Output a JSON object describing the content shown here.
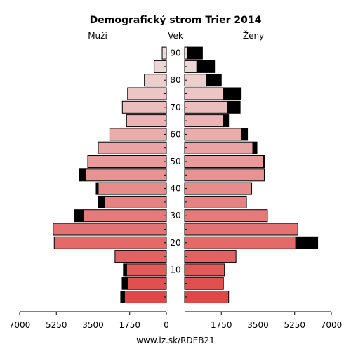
{
  "chart_data": {
    "type": "bar",
    "title": "Demografický strom Trier 2014",
    "left_label": "Muži",
    "center_label": "Vek",
    "right_label": "Ženy",
    "footer": "www.iz.sk/RDEB21",
    "xlim": [
      0,
      7000
    ],
    "x_ticks": [
      "7000",
      "5250",
      "3500",
      "1750",
      "0",
      "1750",
      "3500",
      "5250",
      "7000"
    ],
    "age_tick_labels": [
      "10",
      "20",
      "30",
      "40",
      "50",
      "60",
      "70",
      "80",
      "90"
    ],
    "age_groups": [
      "0-4",
      "5-9",
      "10-14",
      "15-19",
      "20-24",
      "25-29",
      "30-34",
      "35-39",
      "40-44",
      "45-49",
      "50-54",
      "55-59",
      "60-64",
      "65-69",
      "70-74",
      "75-79",
      "80-84",
      "85-89",
      "90+"
    ],
    "series": [
      {
        "name": "Muži",
        "values": [
          2000,
          1850,
          1900,
          2450,
          5350,
          5400,
          3950,
          2950,
          3250,
          3850,
          3750,
          3250,
          2700,
          1900,
          2100,
          1850,
          1050,
          580,
          200
        ],
        "excess": [
          180,
          260,
          150,
          0,
          0,
          0,
          450,
          300,
          100,
          300,
          0,
          0,
          0,
          0,
          0,
          0,
          0,
          0,
          0
        ]
      },
      {
        "name": "Ženy",
        "values": [
          2100,
          1850,
          1900,
          2450,
          5300,
          5400,
          3950,
          2950,
          3200,
          3800,
          3750,
          3250,
          2700,
          1850,
          2050,
          1850,
          1050,
          580,
          150
        ],
        "excess": [
          0,
          0,
          0,
          0,
          1050,
          0,
          0,
          0,
          0,
          0,
          50,
          200,
          300,
          250,
          600,
          850,
          700,
          850,
          700
        ]
      }
    ],
    "colors": {
      "young": "#e04848",
      "old": "#f0dede",
      "excess": "#000000"
    }
  }
}
